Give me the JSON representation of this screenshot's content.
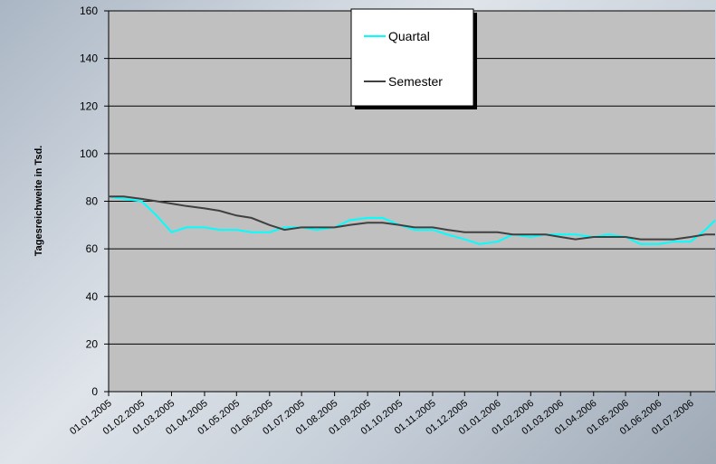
{
  "chart_data": {
    "type": "line",
    "y_label": "Tagesreichweite in Tsd.",
    "x": [
      "01.01.2005",
      "15.01.2005",
      "01.02.2005",
      "15.02.2005",
      "01.03.2005",
      "15.03.2005",
      "01.04.2005",
      "15.04.2005",
      "01.05.2005",
      "15.05.2005",
      "01.06.2005",
      "15.06.2005",
      "01.07.2005",
      "15.07.2005",
      "01.08.2005",
      "15.08.2005",
      "01.09.2005",
      "15.09.2005",
      "01.10.2005",
      "15.10.2005",
      "01.11.2005",
      "15.11.2005",
      "01.12.2005",
      "15.12.2005",
      "01.01.2006",
      "15.01.2006",
      "01.02.2006",
      "15.02.2006",
      "01.03.2006",
      "15.03.2006",
      "01.04.2006",
      "15.04.2006",
      "01.05.2006",
      "15.05.2006",
      "01.06.2006",
      "15.06.2006",
      "01.07.2006",
      "15.07.2006",
      "24.07.2006"
    ],
    "series": [
      {
        "name": "Quartal",
        "color": "#00ffff",
        "values": [
          82,
          81,
          80,
          74,
          67,
          69,
          69,
          68,
          68,
          67,
          67,
          69,
          69,
          68,
          69,
          72,
          73,
          73,
          70,
          68,
          68,
          66,
          64,
          62,
          63,
          66,
          65,
          66,
          66,
          66,
          65,
          66,
          65,
          62,
          62,
          63,
          63,
          68,
          72
        ]
      },
      {
        "name": "Semester",
        "color": "#404040",
        "values": [
          82,
          82,
          81,
          80,
          79,
          78,
          77,
          76,
          74,
          73,
          70,
          68,
          69,
          69,
          69,
          70,
          71,
          71,
          70,
          69,
          69,
          68,
          67,
          67,
          67,
          66,
          66,
          66,
          65,
          64,
          65,
          65,
          65,
          64,
          64,
          64,
          65,
          66,
          66
        ]
      }
    ],
    "xlim": [
      "01.01.2005",
      "24.07.2006"
    ],
    "xticks": [
      "01.01.2005",
      "01.02.2005",
      "01.03.2005",
      "01.04.2005",
      "01.05.2005",
      "01.06.2005",
      "01.07.2005",
      "01.08.2005",
      "01.09.2005",
      "01.10.2005",
      "01.11.2005",
      "01.12.2005",
      "01.01.2006",
      "01.02.2006",
      "01.03.2006",
      "01.04.2006",
      "01.05.2006",
      "01.06.2006",
      "01.07.2006"
    ],
    "ylim": [
      0,
      160
    ],
    "yticks": [
      0,
      20,
      40,
      60,
      80,
      100,
      120,
      140,
      160
    ],
    "grid": true,
    "legend": "top"
  }
}
